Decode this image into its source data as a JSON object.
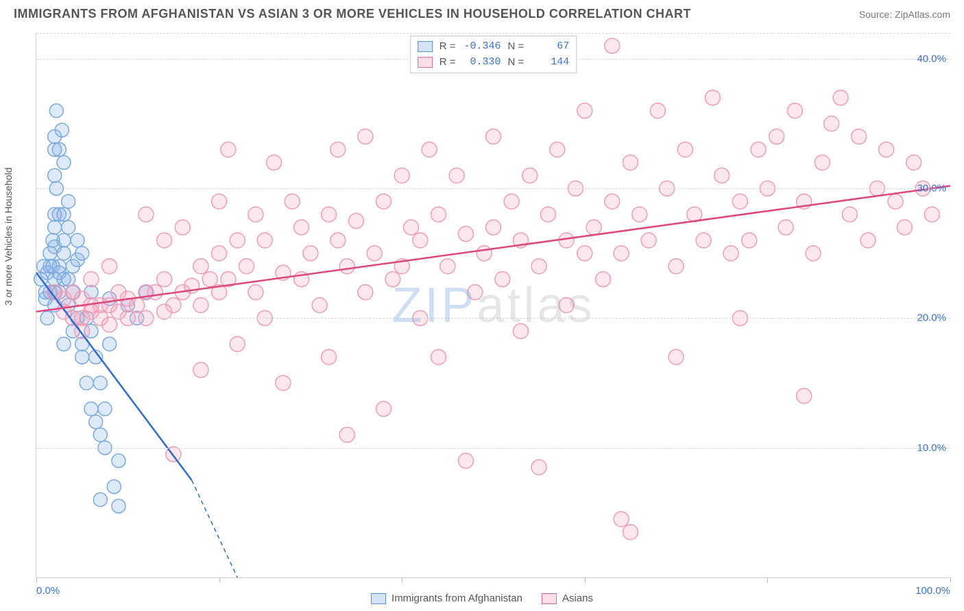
{
  "header": {
    "title": "IMMIGRANTS FROM AFGHANISTAN VS ASIAN 3 OR MORE VEHICLES IN HOUSEHOLD CORRELATION CHART",
    "source_prefix": "Source: ",
    "source_name": "ZipAtlas.com"
  },
  "watermark": {
    "part1": "ZIP",
    "part2": "atlas"
  },
  "chart": {
    "type": "scatter",
    "xlim": [
      0,
      100
    ],
    "ylim": [
      0,
      42
    ],
    "x_ticks": [
      0,
      20,
      40,
      60,
      80,
      100
    ],
    "x_tick_labels": {
      "0": "0.0%",
      "100": "100.0%"
    },
    "y_lines": [
      10,
      20,
      30,
      40
    ],
    "y_tick_labels": {
      "10": "10.0%",
      "20": "20.0%",
      "30": "30.0%",
      "40": "40.0%"
    },
    "ylabel": "3 or more Vehicles in Household",
    "background_color": "#ffffff",
    "grid_color": "#d8d8d8",
    "axis_color": "#d0d0d0",
    "tick_label_color": "#3b6fd8",
    "series": [
      {
        "id": "afghanistan",
        "label": "Immigrants from Afghanistan",
        "fill": "rgba(135,175,230,0.35)",
        "stroke": "#5a8fd6",
        "marker_stroke": "#7aa8e0",
        "marker_fill": "rgba(135,175,230,0.28)",
        "marker_r": 10,
        "R": "-0.346",
        "N": "67",
        "regression": {
          "x1": 0,
          "y1": 23.5,
          "x2": 17,
          "y2": 7.5,
          "dash_x2": 22,
          "dash_y2": 0,
          "color": "#2e6bd0",
          "width": 2.5
        },
        "points": [
          [
            0.5,
            23
          ],
          [
            0.8,
            24
          ],
          [
            1,
            22
          ],
          [
            1,
            21.5
          ],
          [
            1.2,
            23.5
          ],
          [
            1.2,
            20
          ],
          [
            1.5,
            25
          ],
          [
            1.5,
            24
          ],
          [
            1.5,
            22
          ],
          [
            1.8,
            26
          ],
          [
            1.8,
            24
          ],
          [
            2,
            31
          ],
          [
            2,
            33
          ],
          [
            2,
            34
          ],
          [
            2,
            28
          ],
          [
            2,
            27
          ],
          [
            2,
            25.5
          ],
          [
            2,
            23
          ],
          [
            2,
            22
          ],
          [
            2,
            21
          ],
          [
            2.2,
            36
          ],
          [
            2.2,
            30
          ],
          [
            2.5,
            33
          ],
          [
            2.5,
            28
          ],
          [
            2.5,
            24
          ],
          [
            2.5,
            23.5
          ],
          [
            2.5,
            22
          ],
          [
            2.8,
            34.5
          ],
          [
            3,
            32
          ],
          [
            3,
            28
          ],
          [
            3,
            26
          ],
          [
            3,
            25
          ],
          [
            3,
            23
          ],
          [
            3,
            18
          ],
          [
            3.5,
            29
          ],
          [
            3.5,
            27
          ],
          [
            3.5,
            23
          ],
          [
            3.5,
            21
          ],
          [
            4,
            24
          ],
          [
            4,
            22
          ],
          [
            4,
            19
          ],
          [
            4.5,
            26
          ],
          [
            4.5,
            24.5
          ],
          [
            4.5,
            20
          ],
          [
            5,
            25
          ],
          [
            5,
            18
          ],
          [
            5,
            17
          ],
          [
            5.5,
            20
          ],
          [
            5.5,
            15
          ],
          [
            6,
            22
          ],
          [
            6,
            19
          ],
          [
            6,
            13
          ],
          [
            6.5,
            17
          ],
          [
            6.5,
            12
          ],
          [
            7,
            15
          ],
          [
            7,
            11
          ],
          [
            7,
            6
          ],
          [
            7.5,
            13
          ],
          [
            7.5,
            10
          ],
          [
            8,
            21.5
          ],
          [
            8,
            18
          ],
          [
            8.5,
            7
          ],
          [
            9,
            9
          ],
          [
            9,
            5.5
          ],
          [
            10,
            21
          ],
          [
            11,
            20
          ],
          [
            12,
            22
          ]
        ]
      },
      {
        "id": "asians",
        "label": "Asians",
        "fill": "rgba(245,160,185,0.35)",
        "stroke": "#e16a92",
        "marker_stroke": "#f09cb8",
        "marker_fill": "rgba(245,160,185,0.25)",
        "marker_r": 11,
        "R": "0.330",
        "N": "144",
        "regression": {
          "x1": 0,
          "y1": 20.5,
          "x2": 100,
          "y2": 30.2,
          "color": "#e0457c",
          "width": 2.5
        },
        "points": [
          [
            2,
            22
          ],
          [
            3,
            21.5
          ],
          [
            3,
            20.5
          ],
          [
            4,
            22
          ],
          [
            4,
            20
          ],
          [
            5,
            21.5
          ],
          [
            5,
            20
          ],
          [
            5,
            19
          ],
          [
            6,
            23
          ],
          [
            6,
            21
          ],
          [
            6,
            20.5
          ],
          [
            7,
            21
          ],
          [
            7,
            20
          ],
          [
            8,
            24
          ],
          [
            8,
            21
          ],
          [
            8,
            19.5
          ],
          [
            9,
            22
          ],
          [
            9,
            20.5
          ],
          [
            10,
            21.5
          ],
          [
            10,
            20
          ],
          [
            11,
            21
          ],
          [
            12,
            28
          ],
          [
            12,
            22
          ],
          [
            12,
            20
          ],
          [
            13,
            22
          ],
          [
            14,
            26
          ],
          [
            14,
            23
          ],
          [
            14,
            20.5
          ],
          [
            15,
            21
          ],
          [
            15,
            9.5
          ],
          [
            16,
            27
          ],
          [
            16,
            22
          ],
          [
            17,
            22.5
          ],
          [
            18,
            24
          ],
          [
            18,
            21
          ],
          [
            18,
            16
          ],
          [
            19,
            23
          ],
          [
            20,
            29
          ],
          [
            20,
            25
          ],
          [
            20,
            22
          ],
          [
            21,
            33
          ],
          [
            21,
            23
          ],
          [
            22,
            26
          ],
          [
            22,
            18
          ],
          [
            23,
            24
          ],
          [
            24,
            28
          ],
          [
            24,
            22
          ],
          [
            25,
            26
          ],
          [
            25,
            20
          ],
          [
            26,
            32
          ],
          [
            27,
            23.5
          ],
          [
            27,
            15
          ],
          [
            28,
            29
          ],
          [
            29,
            27
          ],
          [
            29,
            23
          ],
          [
            30,
            25
          ],
          [
            31,
            21
          ],
          [
            32,
            28
          ],
          [
            32,
            17
          ],
          [
            33,
            33
          ],
          [
            33,
            26
          ],
          [
            34,
            24
          ],
          [
            34,
            11
          ],
          [
            35,
            27.5
          ],
          [
            36,
            22
          ],
          [
            36,
            34
          ],
          [
            37,
            25
          ],
          [
            38,
            29
          ],
          [
            38,
            13
          ],
          [
            39,
            23
          ],
          [
            40,
            31
          ],
          [
            40,
            24
          ],
          [
            41,
            27
          ],
          [
            42,
            20
          ],
          [
            42,
            26
          ],
          [
            43,
            33
          ],
          [
            44,
            28
          ],
          [
            44,
            17
          ],
          [
            45,
            24
          ],
          [
            46,
            31
          ],
          [
            47,
            26.5
          ],
          [
            47,
            9
          ],
          [
            48,
            22
          ],
          [
            49,
            25
          ],
          [
            50,
            34
          ],
          [
            50,
            27
          ],
          [
            51,
            23
          ],
          [
            52,
            29
          ],
          [
            53,
            26
          ],
          [
            53,
            19
          ],
          [
            54,
            31
          ],
          [
            55,
            24
          ],
          [
            55,
            8.5
          ],
          [
            56,
            28
          ],
          [
            57,
            33
          ],
          [
            58,
            26
          ],
          [
            58,
            21
          ],
          [
            59,
            30
          ],
          [
            60,
            25
          ],
          [
            60,
            36
          ],
          [
            61,
            27
          ],
          [
            62,
            23
          ],
          [
            63,
            41
          ],
          [
            63,
            29
          ],
          [
            64,
            25
          ],
          [
            64,
            4.5
          ],
          [
            65,
            32
          ],
          [
            65,
            3.5
          ],
          [
            66,
            28
          ],
          [
            67,
            26
          ],
          [
            68,
            36
          ],
          [
            69,
            30
          ],
          [
            70,
            24
          ],
          [
            71,
            33
          ],
          [
            72,
            28
          ],
          [
            73,
            26
          ],
          [
            74,
            37
          ],
          [
            75,
            31
          ],
          [
            76,
            25
          ],
          [
            77,
            29
          ],
          [
            77,
            20
          ],
          [
            78,
            26
          ],
          [
            79,
            33
          ],
          [
            80,
            30
          ],
          [
            81,
            34
          ],
          [
            82,
            27
          ],
          [
            83,
            36
          ],
          [
            84,
            29
          ],
          [
            85,
            25
          ],
          [
            86,
            32
          ],
          [
            87,
            35
          ],
          [
            88,
            37
          ],
          [
            89,
            28
          ],
          [
            90,
            34
          ],
          [
            91,
            26
          ],
          [
            92,
            30
          ],
          [
            93,
            33
          ],
          [
            94,
            29
          ],
          [
            95,
            27
          ],
          [
            96,
            32
          ],
          [
            97,
            30
          ],
          [
            98,
            28
          ],
          [
            84,
            14
          ],
          [
            70,
            17
          ]
        ]
      }
    ]
  },
  "bottom_legend": [
    {
      "series": "afghanistan",
      "label": "Immigrants from Afghanistan"
    },
    {
      "series": "asians",
      "label": "Asians"
    }
  ]
}
